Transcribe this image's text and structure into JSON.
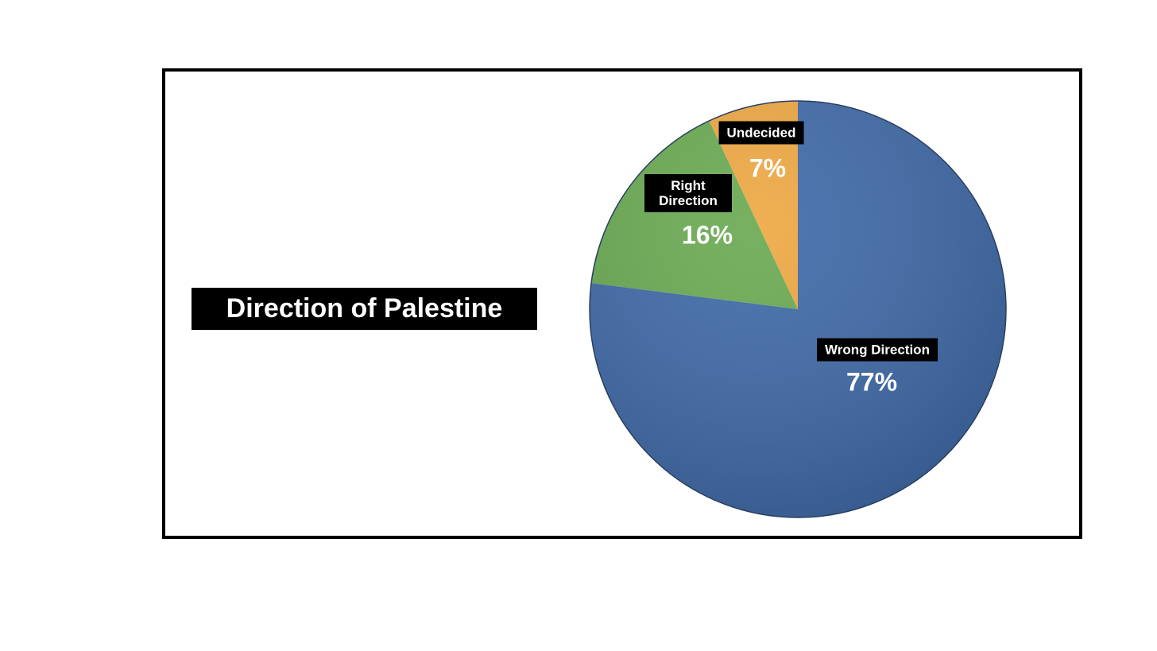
{
  "chart_data": {
    "type": "pie",
    "title": "Direction of Palestine",
    "categories": [
      "Wrong Direction",
      "Right Direction",
      "Undecided"
    ],
    "values": [
      77,
      16,
      7
    ],
    "value_labels": [
      "77%",
      "16%",
      "7%"
    ],
    "colors": [
      "#3f6aa8",
      "#6aaa52",
      "#eea843"
    ]
  }
}
